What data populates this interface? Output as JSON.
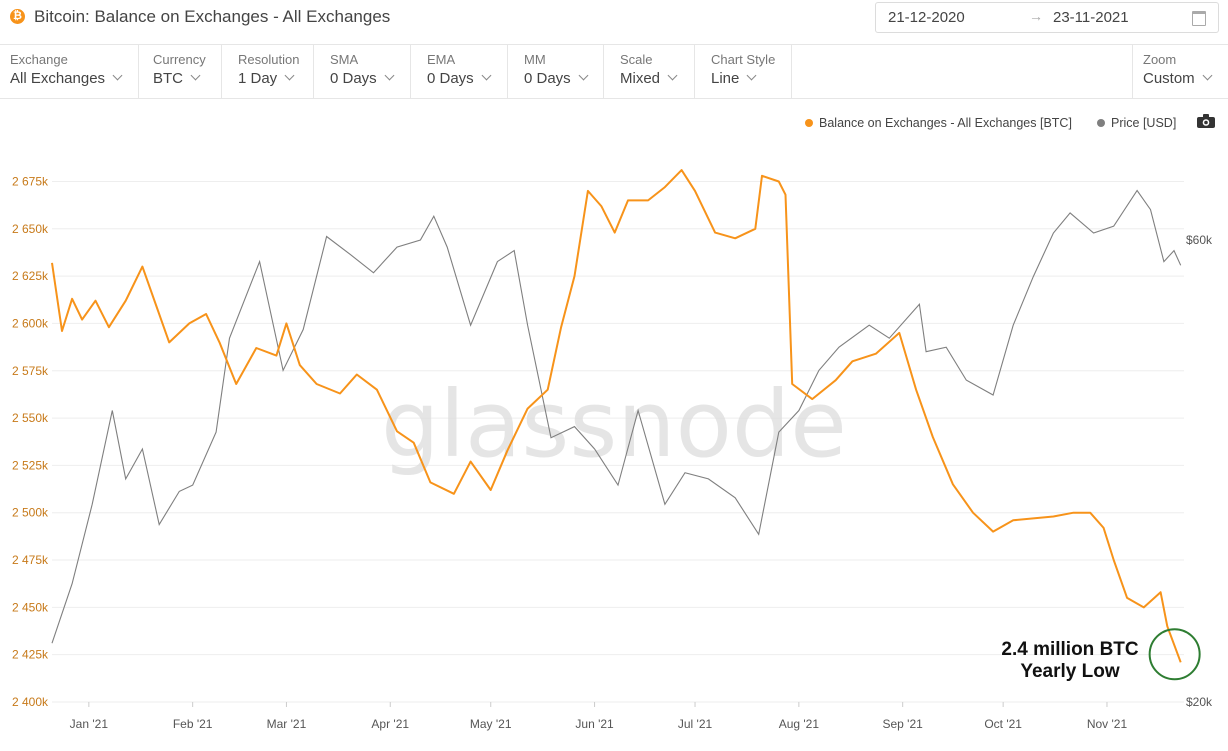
{
  "header": {
    "title": "Bitcoin: Balance on Exchanges - All Exchanges",
    "logo_glyph": "₿",
    "date_start": "21-12-2020",
    "date_arrow": "→",
    "date_end": "23-11-2021"
  },
  "controls": [
    {
      "label": "Exchange",
      "value": "All Exchanges"
    },
    {
      "label": "Currency",
      "value": "BTC"
    },
    {
      "label": "Resolution",
      "value": "1 Day"
    },
    {
      "label": "SMA",
      "value": "0 Days"
    },
    {
      "label": "EMA",
      "value": "0 Days"
    },
    {
      "label": "MM",
      "value": "0 Days"
    },
    {
      "label": "Scale",
      "value": "Mixed"
    },
    {
      "label": "Chart Style",
      "value": "Line"
    }
  ],
  "zoom": {
    "label": "Zoom",
    "value": "Custom"
  },
  "legend": {
    "balance_label": "Balance on Exchanges - All Exchanges [BTC]",
    "price_label": "Price [USD]"
  },
  "watermark": "glassnode",
  "annotation": {
    "line1": "2.4 million BTC",
    "line2": "Yearly Low",
    "circle_color": "#2e7d32"
  },
  "colors": {
    "balance": "#f7931a",
    "price": "#7f7f7f",
    "grid": "#eeeeee",
    "left_axis": "#c77a1a",
    "right_axis": "#555555"
  },
  "chart_data": {
    "type": "line",
    "x_ticks": [
      "Jan '21",
      "Feb '21",
      "Mar '21",
      "Apr '21",
      "May '21",
      "Jun '21",
      "Jul '21",
      "Aug '21",
      "Sep '21",
      "Oct '21",
      "Nov '21"
    ],
    "y_left": {
      "ticks": [
        "2 400k",
        "2 425k",
        "2 450k",
        "2 475k",
        "2 500k",
        "2 525k",
        "2 550k",
        "2 575k",
        "2 600k",
        "2 625k",
        "2 650k",
        "2 675k"
      ],
      "range": [
        2400000,
        2680000
      ]
    },
    "y_right": {
      "ticks": [
        "$20k",
        "$60k"
      ],
      "scale": "log"
    },
    "series": [
      {
        "name": "Balance on Exchanges - All Exchanges [BTC]",
        "axis": "left",
        "points": [
          [
            "2020-12-21",
            2632000
          ],
          [
            "2020-12-24",
            2596000
          ],
          [
            "2020-12-27",
            2613000
          ],
          [
            "2020-12-30",
            2602000
          ],
          [
            "2021-01-03",
            2612000
          ],
          [
            "2021-01-07",
            2598000
          ],
          [
            "2021-01-12",
            2612000
          ],
          [
            "2021-01-17",
            2630000
          ],
          [
            "2021-01-21",
            2610000
          ],
          [
            "2021-01-25",
            2590000
          ],
          [
            "2021-01-31",
            2600000
          ],
          [
            "2021-02-05",
            2605000
          ],
          [
            "2021-02-09",
            2590000
          ],
          [
            "2021-02-14",
            2568000
          ],
          [
            "2021-02-20",
            2587000
          ],
          [
            "2021-02-26",
            2583000
          ],
          [
            "2021-03-01",
            2600000
          ],
          [
            "2021-03-05",
            2578000
          ],
          [
            "2021-03-10",
            2568000
          ],
          [
            "2021-03-17",
            2563000
          ],
          [
            "2021-03-22",
            2573000
          ],
          [
            "2021-03-28",
            2565000
          ],
          [
            "2021-04-03",
            2543000
          ],
          [
            "2021-04-08",
            2537000
          ],
          [
            "2021-04-13",
            2516000
          ],
          [
            "2021-04-20",
            2510000
          ],
          [
            "2021-04-25",
            2527000
          ],
          [
            "2021-05-01",
            2512000
          ],
          [
            "2021-05-06",
            2533000
          ],
          [
            "2021-05-12",
            2555000
          ],
          [
            "2021-05-18",
            2565000
          ],
          [
            "2021-05-22",
            2598000
          ],
          [
            "2021-05-26",
            2625000
          ],
          [
            "2021-05-30",
            2670000
          ],
          [
            "2021-06-03",
            2662000
          ],
          [
            "2021-06-07",
            2648000
          ],
          [
            "2021-06-11",
            2665000
          ],
          [
            "2021-06-17",
            2665000
          ],
          [
            "2021-06-22",
            2672000
          ],
          [
            "2021-06-27",
            2681000
          ],
          [
            "2021-07-01",
            2670000
          ],
          [
            "2021-07-07",
            2648000
          ],
          [
            "2021-07-13",
            2645000
          ],
          [
            "2021-07-19",
            2650000
          ],
          [
            "2021-07-21",
            2678000
          ],
          [
            "2021-07-26",
            2675000
          ],
          [
            "2021-07-28",
            2668000
          ],
          [
            "2021-07-30",
            2568000
          ],
          [
            "2021-08-05",
            2560000
          ],
          [
            "2021-08-12",
            2570000
          ],
          [
            "2021-08-17",
            2580000
          ],
          [
            "2021-08-24",
            2584000
          ],
          [
            "2021-08-31",
            2595000
          ],
          [
            "2021-09-05",
            2565000
          ],
          [
            "2021-09-10",
            2540000
          ],
          [
            "2021-09-16",
            2515000
          ],
          [
            "2021-09-22",
            2500000
          ],
          [
            "2021-09-28",
            2490000
          ],
          [
            "2021-10-04",
            2496000
          ],
          [
            "2021-10-10",
            2497000
          ],
          [
            "2021-10-16",
            2498000
          ],
          [
            "2021-10-22",
            2500000
          ],
          [
            "2021-10-27",
            2500000
          ],
          [
            "2021-10-31",
            2492000
          ],
          [
            "2021-11-03",
            2475000
          ],
          [
            "2021-11-07",
            2455000
          ],
          [
            "2021-11-12",
            2450000
          ],
          [
            "2021-11-17",
            2458000
          ],
          [
            "2021-11-19",
            2440000
          ],
          [
            "2021-11-23",
            2421000
          ]
        ]
      },
      {
        "name": "Price [USD]",
        "axis": "right",
        "points": [
          [
            "2020-12-21",
            23000
          ],
          [
            "2020-12-27",
            26500
          ],
          [
            "2021-01-02",
            32000
          ],
          [
            "2021-01-08",
            40000
          ],
          [
            "2021-01-12",
            34000
          ],
          [
            "2021-01-17",
            36500
          ],
          [
            "2021-01-22",
            30500
          ],
          [
            "2021-01-28",
            33000
          ],
          [
            "2021-02-01",
            33500
          ],
          [
            "2021-02-08",
            38000
          ],
          [
            "2021-02-12",
            47500
          ],
          [
            "2021-02-21",
            57000
          ],
          [
            "2021-02-28",
            44000
          ],
          [
            "2021-03-06",
            48500
          ],
          [
            "2021-03-13",
            60500
          ],
          [
            "2021-03-20",
            58000
          ],
          [
            "2021-03-27",
            55500
          ],
          [
            "2021-04-03",
            59000
          ],
          [
            "2021-04-10",
            60000
          ],
          [
            "2021-04-14",
            63500
          ],
          [
            "2021-04-18",
            59000
          ],
          [
            "2021-04-25",
            49000
          ],
          [
            "2021-05-03",
            57000
          ],
          [
            "2021-05-08",
            58500
          ],
          [
            "2021-05-12",
            49000
          ],
          [
            "2021-05-19",
            37500
          ],
          [
            "2021-05-26",
            38500
          ],
          [
            "2021-06-01",
            36500
          ],
          [
            "2021-06-08",
            33500
          ],
          [
            "2021-06-14",
            40000
          ],
          [
            "2021-06-22",
            32000
          ],
          [
            "2021-06-28",
            34500
          ],
          [
            "2021-07-05",
            34000
          ],
          [
            "2021-07-13",
            32500
          ],
          [
            "2021-07-20",
            29800
          ],
          [
            "2021-07-26",
            38000
          ],
          [
            "2021-08-01",
            40000
          ],
          [
            "2021-08-07",
            44000
          ],
          [
            "2021-08-13",
            46500
          ],
          [
            "2021-08-22",
            49000
          ],
          [
            "2021-08-28",
            47500
          ],
          [
            "2021-09-06",
            51500
          ],
          [
            "2021-09-08",
            46000
          ],
          [
            "2021-09-14",
            46500
          ],
          [
            "2021-09-20",
            43000
          ],
          [
            "2021-09-28",
            41500
          ],
          [
            "2021-10-04",
            49000
          ],
          [
            "2021-10-10",
            55000
          ],
          [
            "2021-10-16",
            61000
          ],
          [
            "2021-10-21",
            64000
          ],
          [
            "2021-10-28",
            61000
          ],
          [
            "2021-11-03",
            62000
          ],
          [
            "2021-11-10",
            67500
          ],
          [
            "2021-11-14",
            64500
          ],
          [
            "2021-11-18",
            57000
          ],
          [
            "2021-11-21",
            58500
          ],
          [
            "2021-11-23",
            56500
          ]
        ]
      }
    ]
  }
}
